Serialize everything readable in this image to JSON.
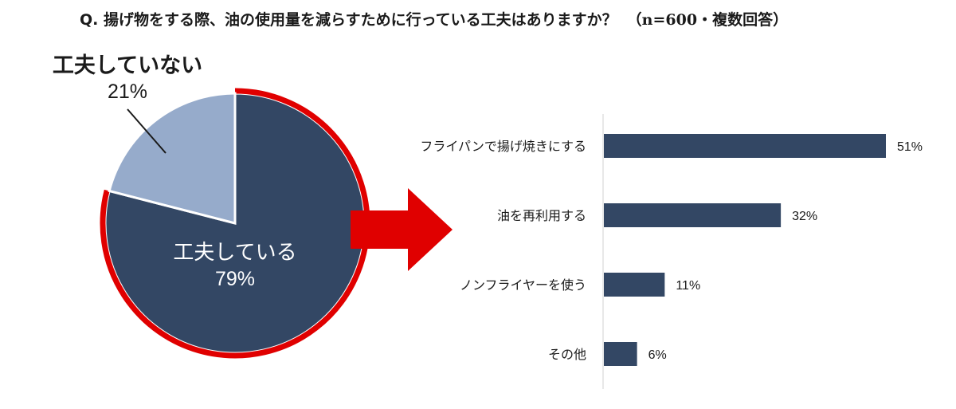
{
  "title": {
    "question": "Q. 揚げ物をする際、油の使用量を減らすために行っている工夫はありますか？",
    "note": "（n=600・複数回答）"
  },
  "chart_data": [
    {
      "type": "pie",
      "slices": [
        {
          "label": "工夫している",
          "value": 79,
          "value_label": "79%",
          "color": "#334764"
        },
        {
          "label": "工夫していない",
          "value": 21,
          "value_label": "21%",
          "color": "#96abcb"
        }
      ],
      "highlight_color": "#e00000"
    },
    {
      "type": "bar",
      "orientation": "horizontal",
      "categories": [
        "フライパンで揚げ焼きにする",
        "油を再利用する",
        "ノンフライヤーを使う",
        "その他"
      ],
      "values": [
        51,
        32,
        11,
        6
      ],
      "value_labels": [
        "51%",
        "32%",
        "11%",
        "6%"
      ],
      "color": "#334764",
      "xlim": [
        0,
        60
      ]
    }
  ]
}
